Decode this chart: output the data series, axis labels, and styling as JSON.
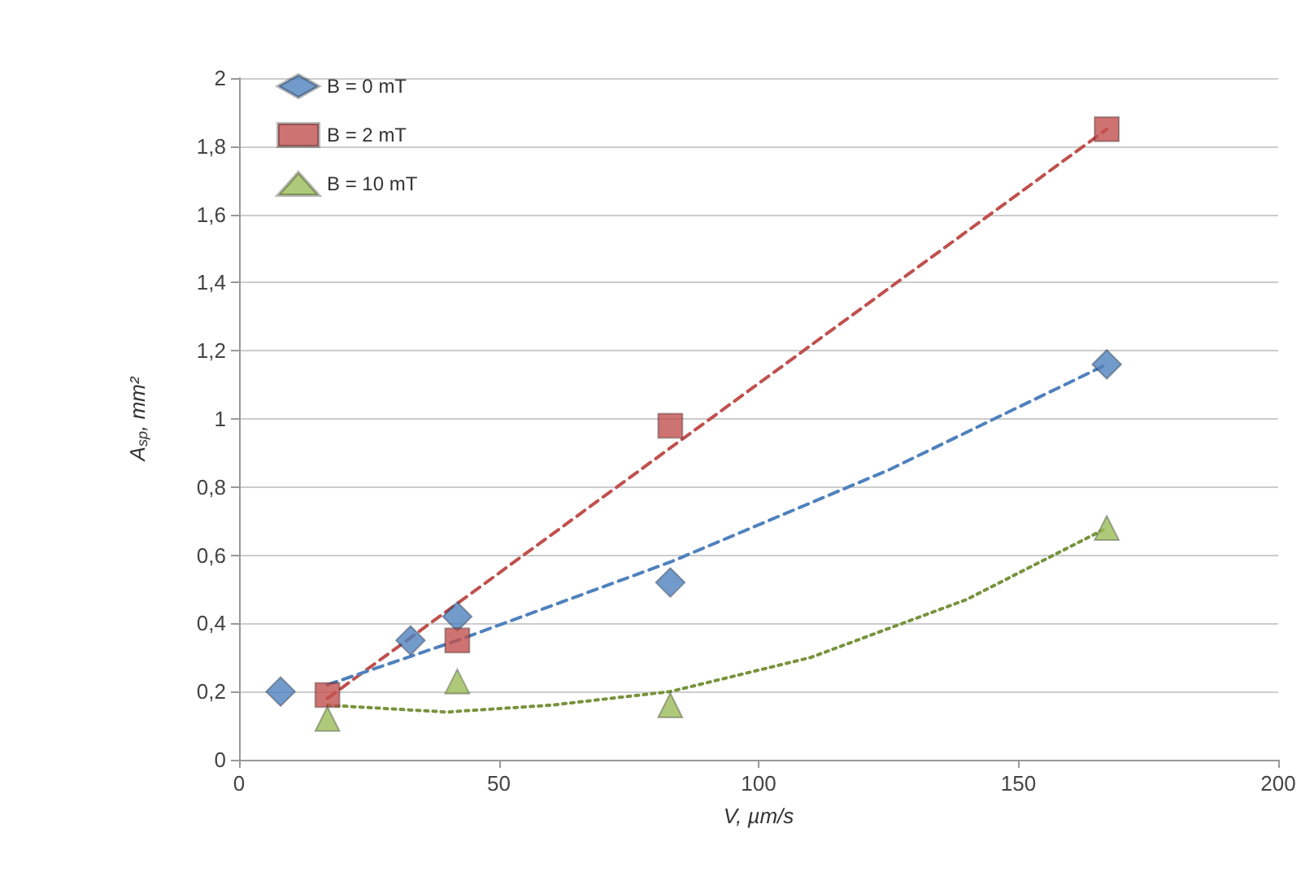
{
  "chart_data": {
    "type": "scatter",
    "xlabel": "V, µm/s",
    "ylabel": "A$_{sp}$, mm²",
    "xlim": [
      0,
      200
    ],
    "xticks": [
      0,
      50,
      100,
      150,
      200
    ],
    "ylim": [
      0,
      2
    ],
    "yticks": [
      0,
      {
        "value": 0.2,
        "label": "0,2"
      },
      {
        "value": 0.4,
        "label": "0,4"
      },
      {
        "value": 0.6,
        "label": "0,6"
      },
      {
        "value": 0.8,
        "label": "0,8"
      },
      1,
      {
        "value": 1.2,
        "label": "1,2"
      },
      {
        "value": 1.4,
        "label": "1,4"
      },
      {
        "value": 1.6,
        "label": "1,6"
      },
      {
        "value": 1.8,
        "label": "1,8"
      },
      2
    ],
    "grid": "y",
    "legend": "top left",
    "series": [
      {
        "name": "B = 0 mT",
        "color": "#4f81bd",
        "marker": "diamond",
        "x": [
          8,
          33,
          42,
          83,
          167
        ],
        "values": [
          0.2,
          0.35,
          0.42,
          0.52,
          1.16
        ]
      },
      {
        "name": "B = 2 mT",
        "color": "#c0504d",
        "marker": "square",
        "x": [
          17,
          42,
          83,
          167
        ],
        "values": [
          0.19,
          0.35,
          0.98,
          1.85
        ]
      },
      {
        "name": "B = 10 mT",
        "color": "#9bbb59",
        "marker": "triangle",
        "x": [
          17,
          42,
          83,
          167
        ],
        "values": [
          0.12,
          0.23,
          0.16,
          0.68
        ]
      },
      {
        "type": "line",
        "color": "#c0504d",
        "line_style": "dashed",
        "marker": "none",
        "x": [
          17,
          167
        ],
        "values": [
          0.18,
          1.85
        ]
      },
      {
        "type": "line",
        "color": "#4f81bd",
        "line_style": "dashed",
        "marker": "none",
        "x": [
          17,
          42,
          83,
          125,
          167
        ],
        "values": [
          0.22,
          0.35,
          0.58,
          0.85,
          1.16
        ]
      },
      {
        "type": "line",
        "color": "#77933c",
        "line_style": "dotted",
        "marker": "none",
        "x": [
          17,
          40,
          60,
          83,
          110,
          140,
          167
        ],
        "values": [
          0.16,
          0.14,
          0.16,
          0.2,
          0.3,
          0.47,
          0.68
        ]
      }
    ]
  }
}
